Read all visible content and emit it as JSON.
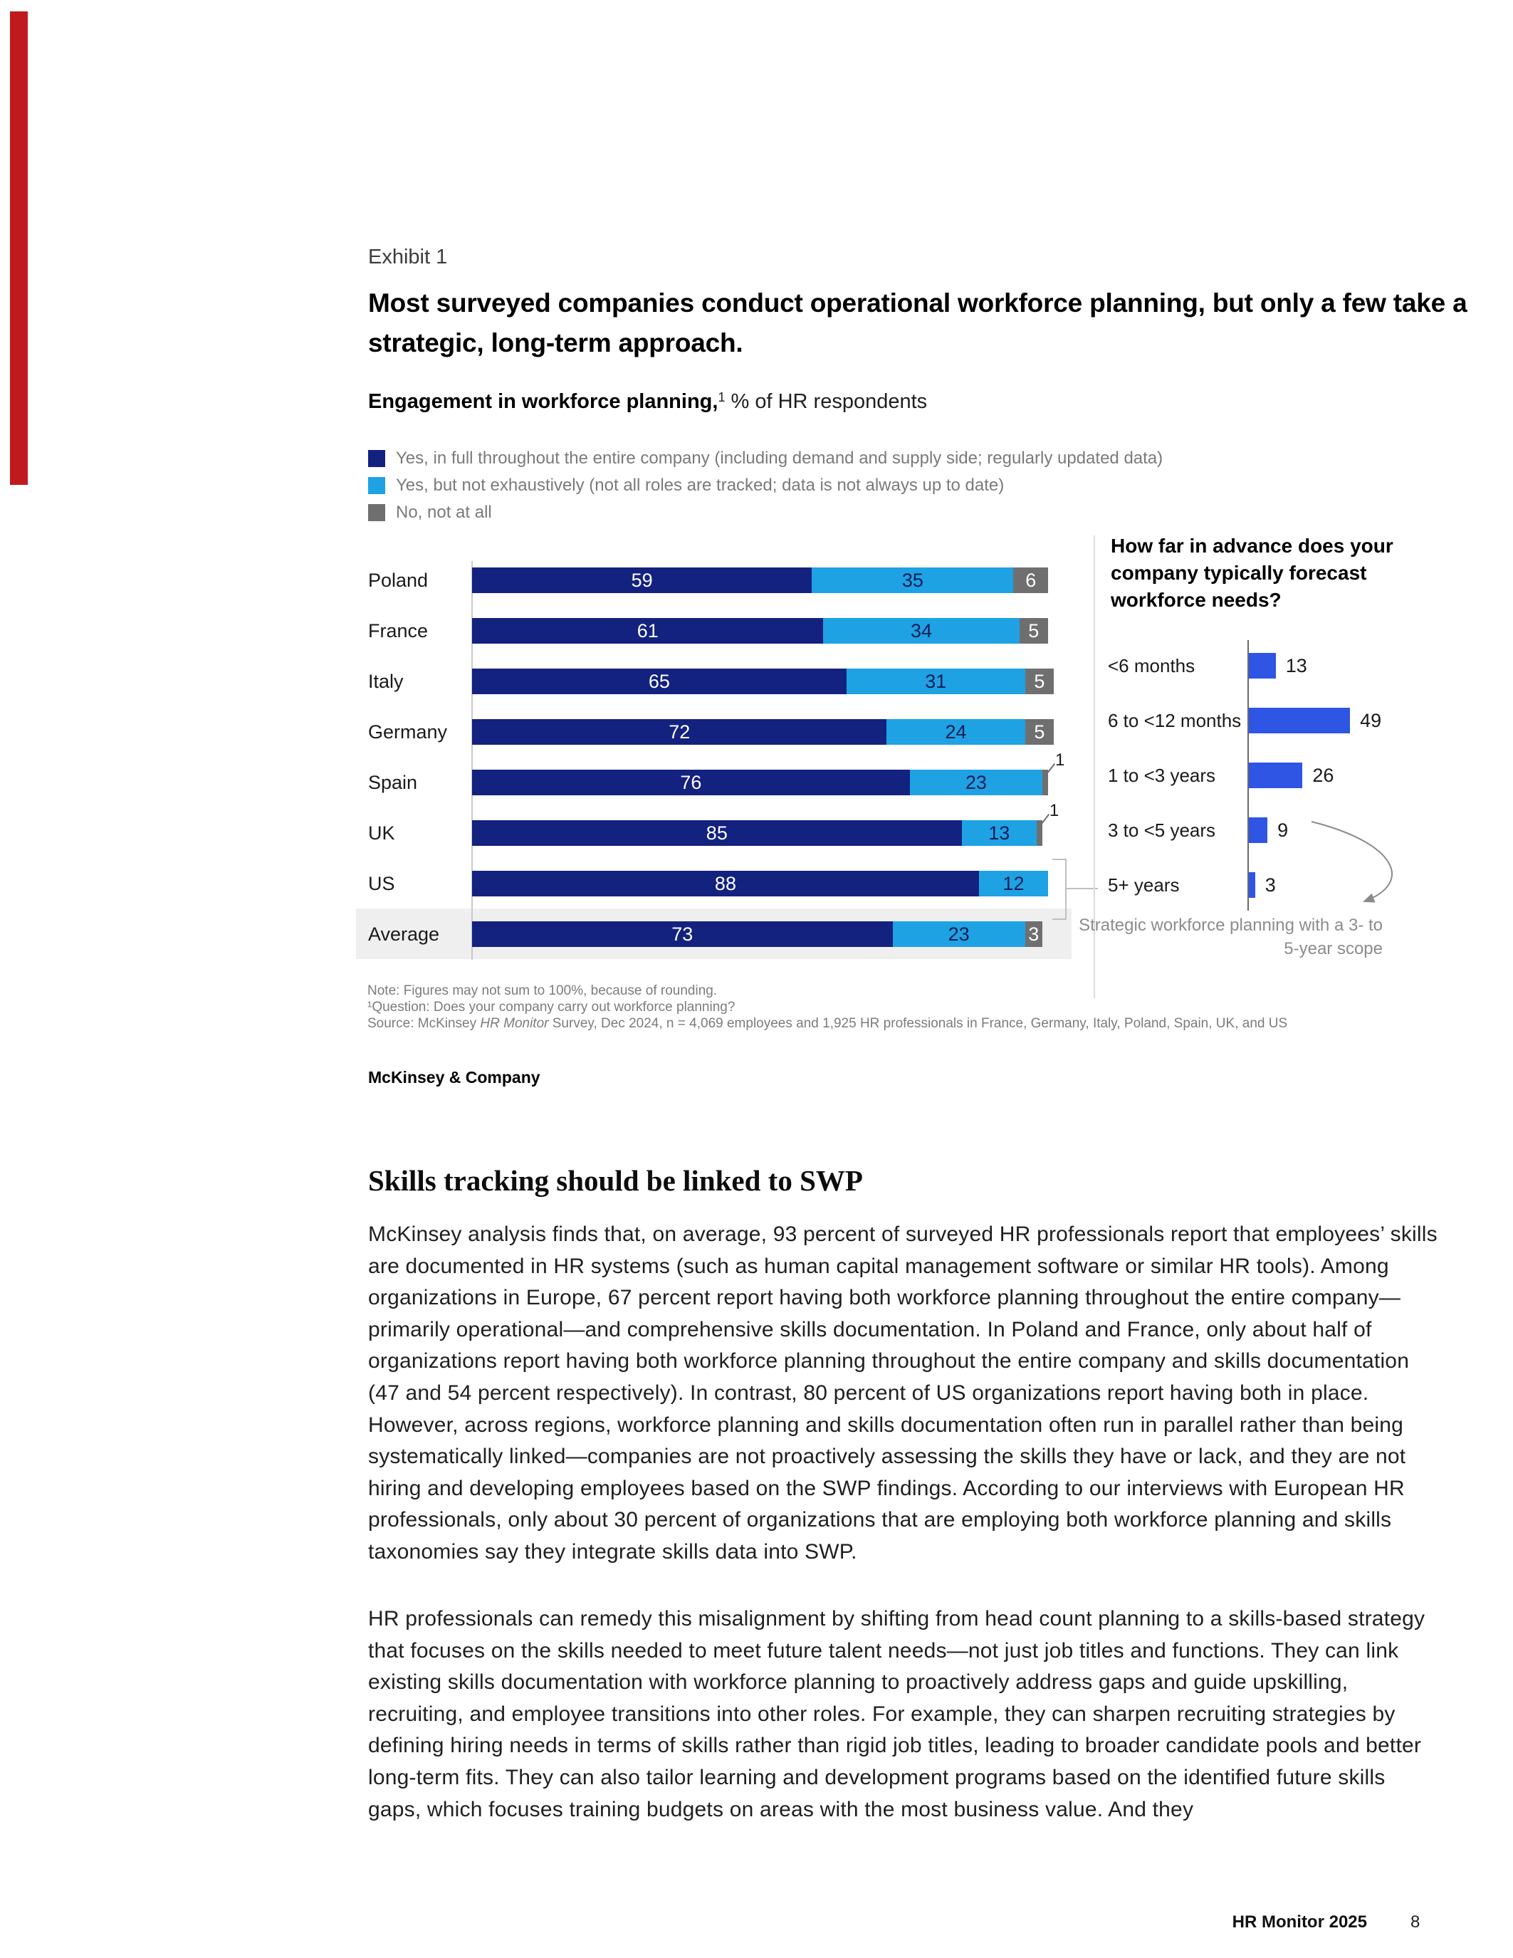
{
  "page": {
    "exhibit_label": "Exhibit 1",
    "title": "Most surveyed companies conduct operational workforce planning, but only a few take a strategic, long-term approach.",
    "subtitle_bold": "Engagement in workforce planning,",
    "subtitle_sup": "1",
    "subtitle_rest": " % of HR respondents",
    "brand": "McKinsey & Company",
    "section_heading": "Skills tracking should be linked to SWP",
    "paragraph_1": "McKinsey analysis finds that, on average, 93 percent of surveyed HR professionals report that employees’ skills are documented in HR systems (such as human capital management software or similar HR tools). Among organizations in Europe, 67 percent report having both workforce planning throughout the entire company—primarily operational—and comprehensive skills documentation. In Poland and France, only about half of organizations report having both workforce planning throughout the entire company and skills documentation (47 and 54 percent respectively). In contrast, 80 percent of US organizations report having both in place. However, across regions, workforce planning and skills documentation often run in parallel rather than being systematically linked—companies are not proactively assessing the skills they have or lack, and they are not hiring and developing employees based on the SWP findings. According to our interviews with European HR professionals, only about 30 percent of organizations that are employing both workforce planning and skills taxonomies say they integrate skills data into SWP.",
    "paragraph_2": "HR professionals can remedy this misalignment by shifting from head count planning to a skills-based strategy that focuses on the skills needed to meet future talent needs—not just job titles and functions. They can link existing skills documentation with workforce planning to proactively address gaps and guide upskilling, recruiting, and employee transitions into other roles. For example, they can sharpen recruiting strategies by defining hiring needs in terms of skills rather than rigid job titles, leading to broader candidate pools and better long-term fits. They can also tailor learning and development programs based on the identified future skills gaps, which focuses training budgets on areas with the most business value. And they",
    "footer_brand": "HR Monitor 2025",
    "footer_page": "8"
  },
  "legend": {
    "items": [
      {
        "key": "full",
        "label": "Yes, in full throughout the entire company (including demand and supply side; regularly updated data)"
      },
      {
        "key": "partial",
        "label": "Yes, but not exhaustively (not all roles are tracked; data is not always up to date)"
      },
      {
        "key": "none",
        "label": "No, not at all"
      }
    ]
  },
  "notes": {
    "note": "Note: Figures may not sum to 100%, because of rounding.",
    "question": "¹Question: Does your company carry out workforce planning?",
    "source_prefix": "Source: McKinsey ",
    "source_italic": "HR Monitor",
    "source_suffix": " Survey, Dec 2024, n = 4,069 employees and 1,925 HR professionals in France, Germany, Italy, Poland, Spain, UK, and US"
  },
  "colors": {
    "navy": "#13227F",
    "cyan": "#1EA2E4",
    "gray": "#6F6F6F",
    "royal": "#2F55E5",
    "band": "#EFEFEF",
    "red_bar": "#C01A1E",
    "cyan_text": "#0E1E55"
  },
  "chart_data": [
    {
      "type": "bar",
      "orientation": "horizontal",
      "stacked": true,
      "title": "Engagement in workforce planning, % of HR respondents",
      "categories": [
        "Poland",
        "France",
        "Italy",
        "Germany",
        "Spain",
        "UK",
        "US",
        "Average"
      ],
      "series": [
        {
          "name": "Yes, in full throughout the entire company (including demand and supply side; regularly updated data)",
          "values": [
            59,
            61,
            65,
            72,
            76,
            85,
            88,
            73
          ]
        },
        {
          "name": "Yes, but not exhaustively (not all roles are tracked; data is not always up to date)",
          "values": [
            35,
            34,
            31,
            24,
            23,
            13,
            12,
            23
          ]
        },
        {
          "name": "No, not at all",
          "values": [
            6,
            5,
            5,
            5,
            1,
            1,
            0,
            3
          ]
        }
      ],
      "none_label_outside": [
        false,
        false,
        false,
        false,
        true,
        true,
        false,
        false
      ],
      "xlim": [
        0,
        100
      ],
      "highlight_category": "Average",
      "legend_position": "top",
      "grid": false
    },
    {
      "type": "bar",
      "orientation": "horizontal",
      "title": "How far in advance does your company typically forecast workforce needs?",
      "categories": [
        "<6 months",
        "6 to <12 months",
        "1 to <3 years",
        "3 to <5 years",
        "5+ years"
      ],
      "values": [
        13,
        49,
        26,
        9,
        3
      ],
      "xlim": [
        0,
        100
      ],
      "grid": false,
      "annotation": "Strategic workforce planning with a 3- to 5-year scope",
      "annotation_target_category": "3 to <5 years"
    }
  ]
}
